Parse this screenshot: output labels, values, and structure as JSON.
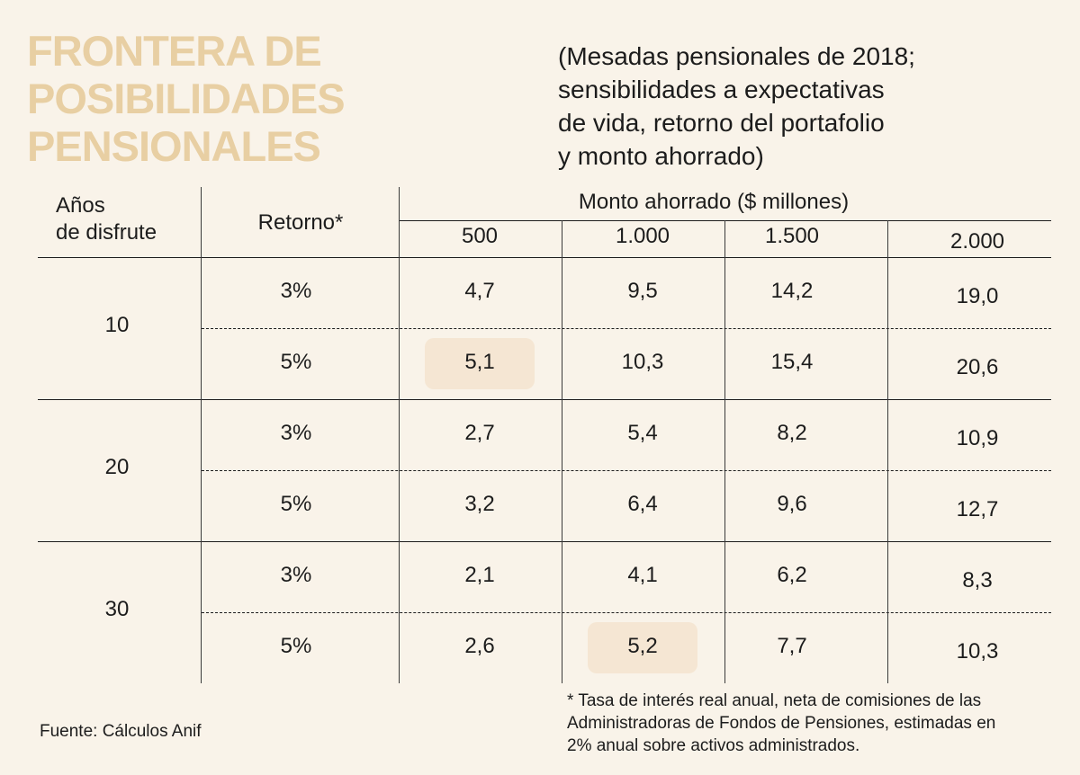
{
  "title_lines": [
    "FRONTERA DE",
    "POSIBILIDADES",
    "PENSIONALES"
  ],
  "subtitle_lines": [
    "(Mesadas pensionales de 2018;",
    "sensibilidades a expectativas",
    "de vida, retorno del portafolio",
    "y monto ahorrado)"
  ],
  "colors": {
    "title": "#e8cfa3",
    "background": "#f9f3e9",
    "highlight": "#f5e6d3",
    "text": "#1c1c1c"
  },
  "chart_data": {
    "type": "table",
    "title": "FRONTERA DE POSIBILIDADES PENSIONALES",
    "subtitle": "(Mesadas pensionales de 2018; sensibilidades a expectativas de vida, retorno del portafolio y monto ahorrado)",
    "header": {
      "years_label_lines": [
        "Años",
        "de disfrute"
      ],
      "return_label": "Retorno*",
      "amount_label": "Monto ahorrado ($ millones)"
    },
    "columns": [
      "500",
      "1.000",
      "1.500",
      "2.000"
    ],
    "groups": [
      {
        "years": "10",
        "rows": [
          {
            "return": "3%",
            "values": [
              "4,7",
              "9,5",
              "14,2",
              "19,0"
            ]
          },
          {
            "return": "5%",
            "values": [
              "5,1",
              "10,3",
              "15,4",
              "20,6"
            ]
          }
        ]
      },
      {
        "years": "20",
        "rows": [
          {
            "return": "3%",
            "values": [
              "2,7",
              "5,4",
              "8,2",
              "10,9"
            ]
          },
          {
            "return": "5%",
            "values": [
              "3,2",
              "6,4",
              "9,6",
              "12,7"
            ]
          }
        ]
      },
      {
        "years": "30",
        "rows": [
          {
            "return": "3%",
            "values": [
              "2,1",
              "4,1",
              "6,2",
              "8,3"
            ]
          },
          {
            "return": "5%",
            "values": [
              "2,6",
              "5,2",
              "7,7",
              "10,3"
            ]
          }
        ]
      }
    ],
    "highlighted_cells": [
      {
        "years": "10",
        "return": "5%",
        "column": "500",
        "value": "5,1"
      },
      {
        "years": "30",
        "return": "5%",
        "column": "1.000",
        "value": "5,2"
      }
    ]
  },
  "footnote_lines": [
    "* Tasa de interés real anual, neta de comisiones de las",
    "Administradoras de Fondos de Pensiones, estimadas en",
    "2% anual sobre activos administrados."
  ],
  "source": "Fuente: Cálculos Anif"
}
